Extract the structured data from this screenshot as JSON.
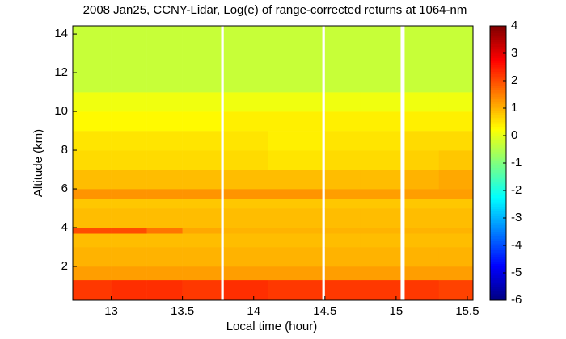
{
  "chart_data": {
    "type": "heatmap",
    "title": "2008 Jan25, CCNY-Lidar, Log(e) of range-corrected returns at 1064-nm",
    "xlabel": "Local time (hour)",
    "ylabel": "Altitude (km)",
    "colormap": "jet",
    "xlim": [
      12.73,
      15.54
    ],
    "xticks": [
      13,
      13.5,
      14,
      14.5,
      15,
      15.5
    ],
    "ylim": [
      0.25,
      14.42
    ],
    "yticks": [
      2,
      4,
      6,
      8,
      10,
      12,
      14
    ],
    "clim": [
      -6,
      4
    ],
    "cticks": [
      -6,
      -5,
      -4,
      -3,
      -2,
      -1,
      0,
      1,
      2,
      3,
      4
    ],
    "xbins": [
      12.73,
      13.0,
      13.25,
      13.5,
      13.77,
      13.79,
      14.1,
      14.48,
      14.5,
      14.75,
      15.03,
      15.06,
      15.3,
      15.54
    ],
    "ybins": [
      0.25,
      1.3,
      2,
      3,
      3.7,
      4,
      5,
      5.5,
      6,
      7,
      8,
      9,
      10,
      11,
      14.42
    ],
    "z": [
      [
        2.2,
        2.3,
        2.3,
        2.2,
        null,
        2.3,
        2.2,
        null,
        2.2,
        2.2,
        null,
        2.2,
        2.1
      ],
      [
        1.2,
        1.2,
        1.2,
        1.2,
        null,
        1.2,
        1.2,
        null,
        1.2,
        1.2,
        null,
        1.2,
        1.2
      ],
      [
        1.0,
        1.0,
        1.0,
        1.0,
        null,
        1.0,
        1.0,
        null,
        1.0,
        1.0,
        null,
        1.0,
        1.0
      ],
      [
        0.9,
        0.9,
        0.9,
        0.9,
        null,
        0.9,
        0.9,
        null,
        0.9,
        0.9,
        null,
        0.9,
        0.9
      ],
      [
        2.0,
        2.0,
        1.6,
        1.1,
        null,
        1.0,
        1.0,
        null,
        1.0,
        1.0,
        null,
        1.0,
        1.0
      ],
      [
        0.9,
        0.9,
        0.9,
        0.9,
        null,
        0.9,
        0.9,
        null,
        0.9,
        0.9,
        null,
        0.9,
        0.9
      ],
      [
        0.8,
        0.8,
        0.8,
        0.8,
        null,
        0.8,
        0.8,
        null,
        0.8,
        0.8,
        null,
        0.8,
        0.8
      ],
      [
        1.3,
        1.3,
        1.3,
        1.3,
        null,
        1.3,
        1.3,
        null,
        1.2,
        1.2,
        null,
        1.2,
        1.2
      ],
      [
        0.9,
        0.9,
        0.9,
        0.9,
        null,
        0.9,
        0.9,
        null,
        0.9,
        0.9,
        null,
        1.0,
        1.1
      ],
      [
        0.6,
        0.6,
        0.6,
        0.6,
        null,
        0.6,
        0.5,
        null,
        0.6,
        0.6,
        null,
        0.7,
        0.8
      ],
      [
        0.5,
        0.5,
        0.5,
        0.5,
        null,
        0.5,
        0.4,
        null,
        0.5,
        0.5,
        null,
        0.6,
        0.6
      ],
      [
        0.3,
        0.3,
        0.3,
        0.3,
        null,
        0.4,
        0.4,
        null,
        0.4,
        0.4,
        null,
        0.4,
        0.4
      ],
      [
        0.1,
        0.1,
        0.1,
        0.1,
        null,
        0.1,
        0.1,
        null,
        0.1,
        0.1,
        null,
        0.1,
        0.1
      ],
      [
        -0.3,
        -0.3,
        -0.3,
        -0.3,
        null,
        -0.3,
        -0.3,
        null,
        -0.3,
        -0.3,
        null,
        -0.3,
        -0.3
      ]
    ]
  }
}
